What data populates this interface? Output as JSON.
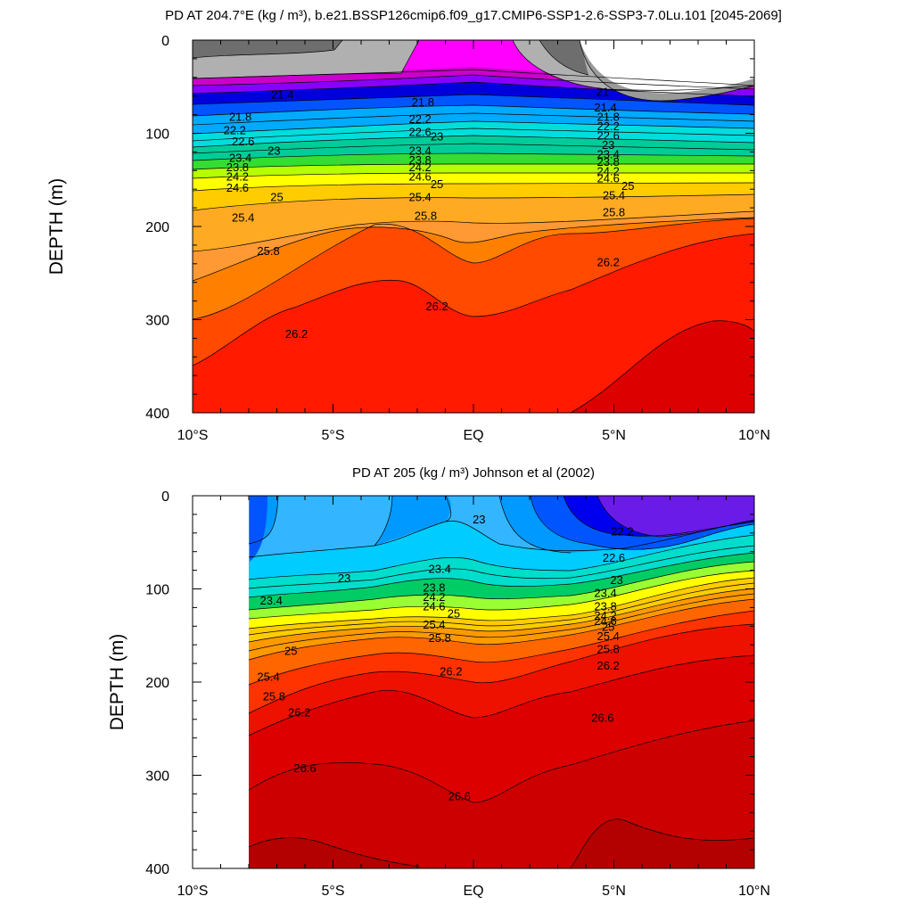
{
  "chart_data": [
    {
      "type": "filled-contour",
      "title": "PD AT 204.7°E (kg / m³), b.e21.BSSP126cmip6.f09_g17.CMIP6-SSP1-2.6-SSP3-7.0Lu.101 [2045-2069]",
      "ylabel": "DEPTH (m)",
      "xlim": [
        -10,
        10
      ],
      "ylim": [
        400,
        0
      ],
      "x_ticks": [
        {
          "value": -10,
          "label": "10°S"
        },
        {
          "value": -5,
          "label": "5°S"
        },
        {
          "value": 0,
          "label": "EQ"
        },
        {
          "value": 5,
          "label": "5°N"
        },
        {
          "value": 10,
          "label": "10°N"
        }
      ],
      "y_ticks": [
        {
          "value": 0,
          "label": "0"
        },
        {
          "value": 100,
          "label": "100"
        },
        {
          "value": 200,
          "label": "200"
        },
        {
          "value": 300,
          "label": "300"
        },
        {
          "value": 400,
          "label": "400"
        }
      ],
      "contour_labels": [
        {
          "text": "21.4",
          "lat": -6.8,
          "depth": 58
        },
        {
          "text": "21.8",
          "lat": -8.3,
          "depth": 82
        },
        {
          "text": "22.2",
          "lat": -8.5,
          "depth": 96
        },
        {
          "text": "22.6",
          "lat": -8.2,
          "depth": 108
        },
        {
          "text": "23",
          "lat": -7.1,
          "depth": 118
        },
        {
          "text": "23.4",
          "lat": -8.3,
          "depth": 126
        },
        {
          "text": "23.8",
          "lat": -8.4,
          "depth": 136
        },
        {
          "text": "24.2",
          "lat": -8.4,
          "depth": 146
        },
        {
          "text": "24.6",
          "lat": -8.4,
          "depth": 158
        },
        {
          "text": "25",
          "lat": -7.0,
          "depth": 168
        },
        {
          "text": "25.4",
          "lat": -8.2,
          "depth": 190
        },
        {
          "text": "25.8",
          "lat": -7.3,
          "depth": 226
        },
        {
          "text": "26.2",
          "lat": -6.3,
          "depth": 315
        },
        {
          "text": "21.8",
          "lat": -1.8,
          "depth": 66
        },
        {
          "text": "22.2",
          "lat": -1.9,
          "depth": 84
        },
        {
          "text": "22.6",
          "lat": -1.9,
          "depth": 98
        },
        {
          "text": "23",
          "lat": -1.3,
          "depth": 103
        },
        {
          "text": "23.4",
          "lat": -1.9,
          "depth": 118
        },
        {
          "text": "23.8",
          "lat": -1.9,
          "depth": 128
        },
        {
          "text": "24.2",
          "lat": -1.9,
          "depth": 136
        },
        {
          "text": "24.6",
          "lat": -1.9,
          "depth": 146
        },
        {
          "text": "25",
          "lat": -1.3,
          "depth": 154
        },
        {
          "text": "25.4",
          "lat": -1.9,
          "depth": 168
        },
        {
          "text": "25.8",
          "lat": -1.7,
          "depth": 188
        },
        {
          "text": "26.2",
          "lat": -1.3,
          "depth": 285
        },
        {
          "text": "21",
          "lat": 4.6,
          "depth": 55
        },
        {
          "text": "21.4",
          "lat": 4.7,
          "depth": 72
        },
        {
          "text": "21.8",
          "lat": 4.8,
          "depth": 82
        },
        {
          "text": "22.2",
          "lat": 4.8,
          "depth": 92
        },
        {
          "text": "22.6",
          "lat": 4.8,
          "depth": 102
        },
        {
          "text": "23",
          "lat": 4.8,
          "depth": 112
        },
        {
          "text": "23.4",
          "lat": 4.8,
          "depth": 122
        },
        {
          "text": "23.8",
          "lat": 4.8,
          "depth": 130
        },
        {
          "text": "24.2",
          "lat": 4.8,
          "depth": 140
        },
        {
          "text": "24.6",
          "lat": 4.8,
          "depth": 148
        },
        {
          "text": "25",
          "lat": 5.5,
          "depth": 156
        },
        {
          "text": "25.4",
          "lat": 5.0,
          "depth": 166
        },
        {
          "text": "25.8",
          "lat": 5.0,
          "depth": 184
        },
        {
          "text": "26.2",
          "lat": 4.8,
          "depth": 238
        }
      ]
    },
    {
      "type": "filled-contour",
      "title": "PD AT 205 (kg / m³) Johnson et al (2002)",
      "ylabel": "DEPTH (m)",
      "xlim": [
        -10,
        10
      ],
      "ylim": [
        400,
        0
      ],
      "x_ticks": [
        {
          "value": -10,
          "label": "10°S"
        },
        {
          "value": -5,
          "label": "5°S"
        },
        {
          "value": 0,
          "label": "EQ"
        },
        {
          "value": 5,
          "label": "5°N"
        },
        {
          "value": 10,
          "label": "10°N"
        }
      ],
      "y_ticks": [
        {
          "value": 0,
          "label": "0"
        },
        {
          "value": 100,
          "label": "100"
        },
        {
          "value": 200,
          "label": "200"
        },
        {
          "value": 300,
          "label": "300"
        },
        {
          "value": 400,
          "label": "400"
        }
      ],
      "data_start_lat": -8,
      "contour_labels": [
        {
          "text": "22.2",
          "lat": 5.3,
          "depth": 38
        },
        {
          "text": "22.6",
          "lat": 5.0,
          "depth": 66
        },
        {
          "text": "23",
          "lat": -4.6,
          "depth": 88
        },
        {
          "text": "23",
          "lat": 0.2,
          "depth": 25
        },
        {
          "text": "23",
          "lat": 5.1,
          "depth": 90
        },
        {
          "text": "23.4",
          "lat": -7.2,
          "depth": 112
        },
        {
          "text": "23.4",
          "lat": -1.2,
          "depth": 78
        },
        {
          "text": "23.4",
          "lat": 4.7,
          "depth": 104
        },
        {
          "text": "23.8",
          "lat": -1.4,
          "depth": 98
        },
        {
          "text": "23.8",
          "lat": 4.7,
          "depth": 118
        },
        {
          "text": "24.2",
          "lat": -1.4,
          "depth": 108
        },
        {
          "text": "24.2",
          "lat": 4.7,
          "depth": 128
        },
        {
          "text": "24.6",
          "lat": -1.4,
          "depth": 118
        },
        {
          "text": "24.6",
          "lat": 4.7,
          "depth": 134
        },
        {
          "text": "25",
          "lat": -0.7,
          "depth": 126
        },
        {
          "text": "25",
          "lat": 4.8,
          "depth": 140
        },
        {
          "text": "25",
          "lat": -6.5,
          "depth": 166
        },
        {
          "text": "25.4",
          "lat": -1.4,
          "depth": 138
        },
        {
          "text": "25.4",
          "lat": 4.8,
          "depth": 150
        },
        {
          "text": "25.4",
          "lat": -7.3,
          "depth": 194
        },
        {
          "text": "25.8",
          "lat": -1.2,
          "depth": 152
        },
        {
          "text": "25.8",
          "lat": 4.8,
          "depth": 164
        },
        {
          "text": "25.8",
          "lat": -7.1,
          "depth": 215
        },
        {
          "text": "26.2",
          "lat": -0.8,
          "depth": 188
        },
        {
          "text": "26.2",
          "lat": 4.8,
          "depth": 182
        },
        {
          "text": "26.2",
          "lat": -6.2,
          "depth": 232
        },
        {
          "text": "26.6",
          "lat": 4.6,
          "depth": 238
        },
        {
          "text": "26.6",
          "lat": -6.0,
          "depth": 292
        },
        {
          "text": "26.6",
          "lat": -0.5,
          "depth": 322
        }
      ]
    }
  ]
}
